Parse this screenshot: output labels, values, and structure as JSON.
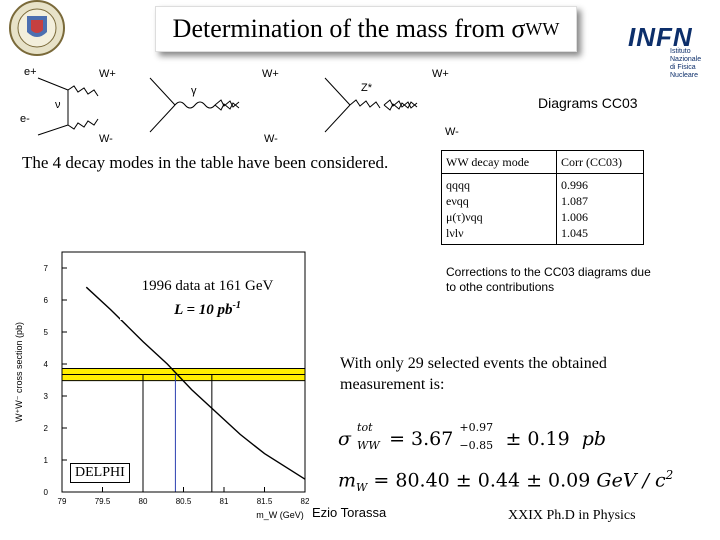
{
  "title": {
    "prefix": "Determination of the mass from ",
    "sigma": "σ",
    "sub": "WW"
  },
  "logos": {
    "left": "university-seal",
    "right": {
      "name": "INFN",
      "line1": "Istituto Nazionale",
      "line2": "di Fisica Nucleare"
    }
  },
  "diagrams": {
    "label": "Diagrams  CC03",
    "particles": {
      "e_plus": "e+",
      "e_minus": "e-",
      "nu": "ν",
      "gamma": "γ",
      "z_star": "Z*",
      "w_plus": "W+",
      "w_minus": "W-"
    }
  },
  "intro_text": "The 4 decay modes in the table have been considered.",
  "table": {
    "headers": [
      "WW decay mode",
      "Corr (CC03)"
    ],
    "modes": [
      "qqqq",
      "eνqq",
      "μ(τ)νqq",
      "lνlν"
    ],
    "corrections": [
      "0.996",
      "1.087",
      "1.006",
      "1.045"
    ]
  },
  "corrections_note": "Corrections to the CC03 diagrams due to othe contributions",
  "chart_data": {
    "type": "line",
    "ylabel": "W⁺W⁻ cross section (pb)",
    "xlabel": "m_W (GeV)",
    "x_ticks": [
      "79",
      "79.5",
      "80",
      "80.5",
      "81",
      "81.5",
      "82"
    ],
    "y_ticks": [
      "0",
      "1",
      "2",
      "3",
      "4",
      "5",
      "6",
      "7"
    ],
    "xlim": [
      79,
      82
    ],
    "ylim": [
      0,
      7.5
    ],
    "series": [
      {
        "x": [
          79.3,
          79.6,
          80,
          80.3,
          80.6,
          80.9,
          81.2,
          81.5,
          82
        ],
        "y": [
          6.4,
          5.7,
          4.7,
          4.0,
          3.2,
          2.5,
          1.8,
          1.2,
          0.4
        ]
      }
    ],
    "band": {
      "y_low": 3.48,
      "y_high": 3.86
    },
    "band_center": 3.67,
    "mass_lines": [
      80.0,
      80.4,
      80.85
    ],
    "annotation": {
      "line1": "1996 data at 161 GeV",
      "line2_prefix": "L = 10 pb",
      "line2_sup": "-1"
    },
    "experiment_label": "DELPHI"
  },
  "measurement_intro": "With only 29 selected events the obtained measurement is:",
  "sigma_result": {
    "symbol": "σ",
    "sup": "tot",
    "sub": "WW",
    "value": "= 3.67",
    "err_up": "+0.97",
    "err_down": "−0.85",
    "stat": "± 0.19",
    "unit": "pb"
  },
  "mass_result": {
    "symbol": "m",
    "sub": "W",
    "value": "= 80.40 ± 0.44 ± 0.09",
    "unit": "GeV / c",
    "unit_sup": "2"
  },
  "footer": {
    "author": "Ezio Torassa",
    "event": "XXIX  Ph.D in Physics"
  }
}
